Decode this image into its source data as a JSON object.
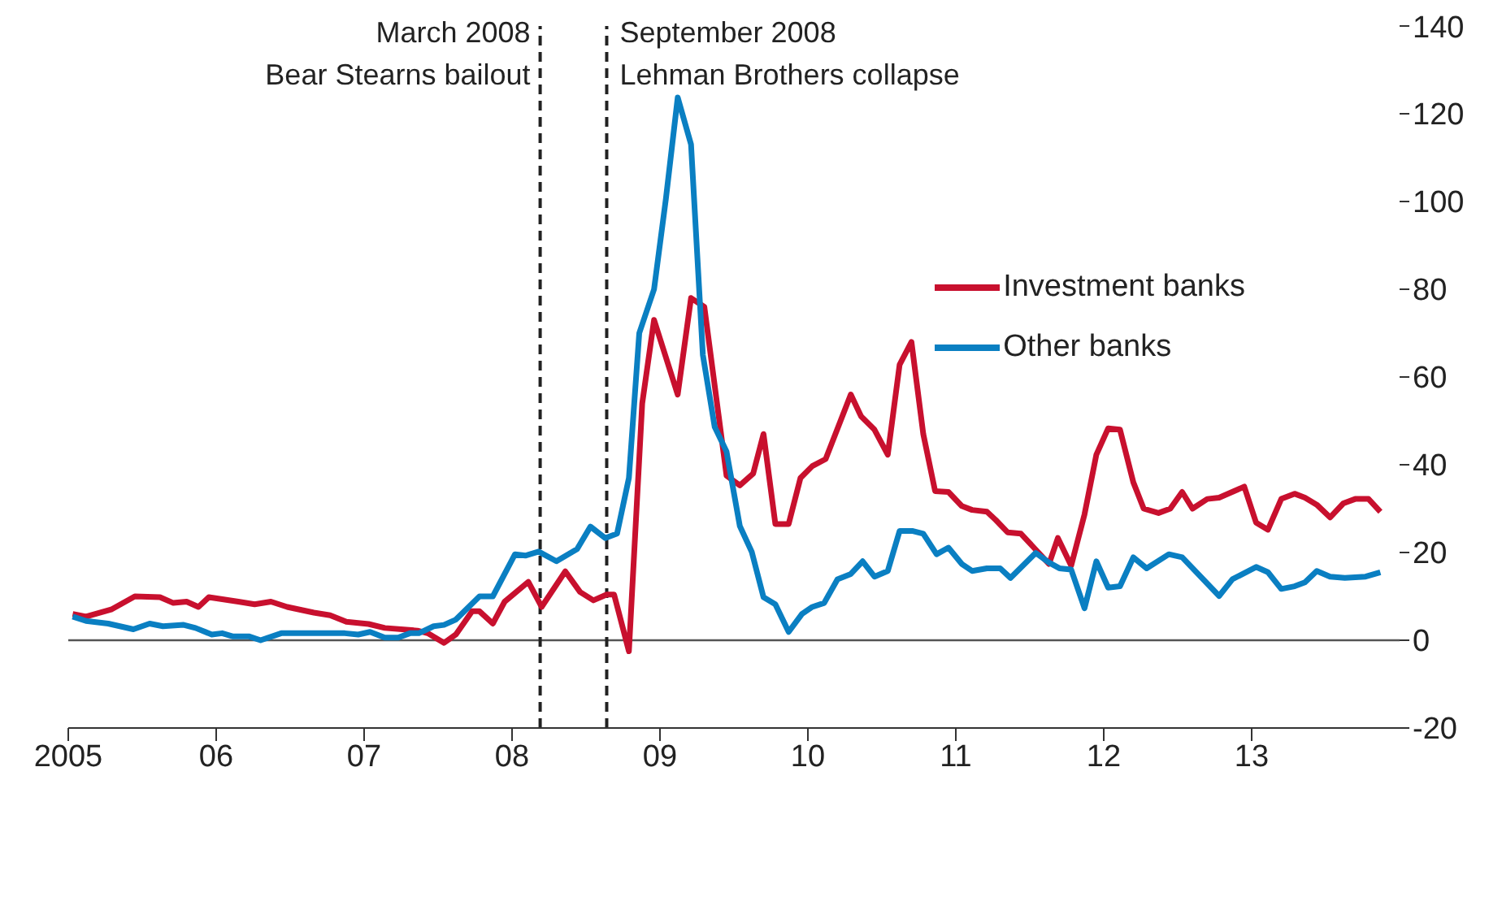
{
  "chart_data": {
    "type": "line",
    "xlim": [
      2005,
      2014
    ],
    "xticks": [
      2005,
      {
        "value": 2006,
        "label": "06"
      },
      {
        "value": 2007,
        "label": "07"
      },
      {
        "value": 2008,
        "label": "08"
      },
      {
        "value": 2009,
        "label": "09"
      },
      {
        "value": 2010,
        "label": "10"
      },
      {
        "value": 2011,
        "label": "11"
      },
      {
        "value": 2012,
        "label": "12"
      },
      {
        "value": 2013,
        "label": "13"
      }
    ],
    "ylim": [
      -20,
      140
    ],
    "yticks": [
      -20,
      0,
      20,
      40,
      60,
      80,
      100,
      120,
      140
    ],
    "grid": false,
    "legend": "top right",
    "line_style": "solid",
    "ref_lines": [
      {
        "axis": "y",
        "value": 0,
        "color": "#555555",
        "line_style": "solid"
      },
      {
        "axis": "x",
        "value": 2008.19,
        "label": "March 2008\nBear Stearns bailout",
        "color": "#222222",
        "line_style": "dashed"
      },
      {
        "axis": "x",
        "value": 2008.64,
        "label": "September 2008\nLehman Brothers collapse",
        "color": "#222222",
        "line_style": "dashed"
      }
    ],
    "series": [
      {
        "name": "Investment banks",
        "color": "#c8102e",
        "x": [
          2005.03,
          2005.12,
          2005.29,
          2005.45,
          2005.62,
          2005.71,
          2005.8,
          2005.88,
          2005.95,
          2006.15,
          2006.26,
          2006.37,
          2006.48,
          2006.66,
          2006.77,
          2006.88,
          2007.03,
          2007.14,
          2007.36,
          2007.43,
          2007.54,
          2007.62,
          2007.73,
          2007.78,
          2007.87,
          2007.95,
          2008.11,
          2008.2,
          2008.36,
          2008.46,
          2008.55,
          2008.64,
          2008.69,
          2008.79,
          2008.88,
          2008.96,
          2009.12,
          2009.21,
          2009.3,
          2009.45,
          2009.54,
          2009.63,
          2009.7,
          2009.78,
          2009.87,
          2009.95,
          2010.03,
          2010.12,
          2010.29,
          2010.36,
          2010.45,
          2010.54,
          2010.62,
          2010.7,
          2010.78,
          2010.86,
          2010.95,
          2011.04,
          2011.11,
          2011.21,
          2011.27,
          2011.35,
          2011.44,
          2011.63,
          2011.69,
          2011.78,
          2011.87,
          2011.95,
          2012.03,
          2012.11,
          2012.2,
          2012.27,
          2012.37,
          2012.45,
          2012.53,
          2012.6,
          2012.7,
          2012.78,
          2012.95,
          2013.03,
          2013.11,
          2013.2,
          2013.29,
          2013.36,
          2013.44,
          2013.53,
          2013.62,
          2013.7,
          2013.79,
          2013.87
        ],
        "values": [
          6,
          5.4,
          7,
          10,
          9.8,
          8.5,
          8.8,
          7.6,
          9.8,
          8.8,
          8.2,
          8.8,
          7.6,
          6.3,
          5.7,
          4.2,
          3.7,
          2.8,
          2.2,
          1.6,
          -0.6,
          1.3,
          6.6,
          6.6,
          3.8,
          8.8,
          13.3,
          7.6,
          15.7,
          11,
          9.1,
          10.4,
          10.4,
          -2.5,
          54,
          73,
          56,
          78,
          76,
          37.5,
          35.3,
          38,
          47,
          26.5,
          26.5,
          37,
          39.7,
          41.3,
          56,
          51,
          48,
          42.3,
          62.8,
          68,
          47,
          34,
          33.8,
          30.6,
          29.7,
          29.3,
          27.4,
          24.6,
          24.3,
          17.4,
          23.3,
          17,
          28.7,
          42.3,
          48.3,
          48,
          36,
          30,
          29,
          30,
          33.8,
          30,
          32.2,
          32.5,
          35,
          26.8,
          25.2,
          32.2,
          33.4,
          32.5,
          30.9,
          28,
          31.2,
          32.2,
          32.2,
          29.3
        ]
      },
      {
        "name": "Other banks",
        "color": "#0a7fc2",
        "x": [
          2005.03,
          2005.12,
          2005.27,
          2005.44,
          2005.55,
          2005.64,
          2005.78,
          2005.86,
          2005.97,
          2006.04,
          2006.11,
          2006.22,
          2006.3,
          2006.44,
          2006.54,
          2006.66,
          2006.87,
          2006.96,
          2007.04,
          2007.14,
          2007.23,
          2007.31,
          2007.37,
          2007.47,
          2007.54,
          2007.62,
          2007.78,
          2007.87,
          2008.02,
          2008.09,
          2008.18,
          2008.3,
          2008.44,
          2008.53,
          2008.63,
          2008.71,
          2008.79,
          2008.86,
          2008.96,
          2009.04,
          2009.12,
          2009.21,
          2009.29,
          2009.37,
          2009.45,
          2009.54,
          2009.62,
          2009.7,
          2009.78,
          2009.87,
          2009.96,
          2010.03,
          2010.11,
          2010.2,
          2010.29,
          2010.37,
          2010.45,
          2010.54,
          2010.62,
          2010.71,
          2010.78,
          2010.87,
          2010.95,
          2011.04,
          2011.11,
          2011.21,
          2011.3,
          2011.37,
          2011.54,
          2011.63,
          2011.7,
          2011.78,
          2011.87,
          2011.95,
          2012.03,
          2012.11,
          2012.2,
          2012.29,
          2012.44,
          2012.53,
          2012.78,
          2012.87,
          2013.03,
          2013.11,
          2013.2,
          2013.29,
          2013.36,
          2013.44,
          2013.53,
          2013.63,
          2013.77,
          2013.87
        ],
        "values": [
          5.4,
          4.4,
          3.8,
          2.5,
          3.8,
          3.2,
          3.5,
          2.8,
          1.3,
          1.6,
          0.9,
          0.9,
          0,
          1.6,
          1.6,
          1.6,
          1.6,
          1.3,
          1.9,
          0.6,
          0.6,
          1.6,
          1.6,
          3.2,
          3.5,
          4.7,
          10,
          10,
          19.6,
          19.3,
          20.2,
          18,
          20.8,
          25.9,
          23.3,
          24.3,
          37,
          70,
          80,
          100.6,
          123.7,
          113,
          65,
          48.6,
          43,
          26,
          20.2,
          9.8,
          8.2,
          1.9,
          6,
          7.6,
          8.5,
          13.9,
          15.1,
          18,
          14.5,
          15.8,
          24.9,
          24.9,
          24.3,
          19.6,
          21.1,
          17.4,
          15.8,
          16.4,
          16.4,
          14.2,
          19.9,
          17.7,
          16.4,
          16.1,
          7.3,
          18,
          12,
          12.3,
          18.9,
          16.4,
          19.6,
          18.9,
          10.1,
          13.9,
          16.7,
          15.5,
          11.7,
          12.3,
          13.2,
          15.8,
          14.5,
          14.2,
          14.5,
          15.5
        ]
      }
    ]
  }
}
